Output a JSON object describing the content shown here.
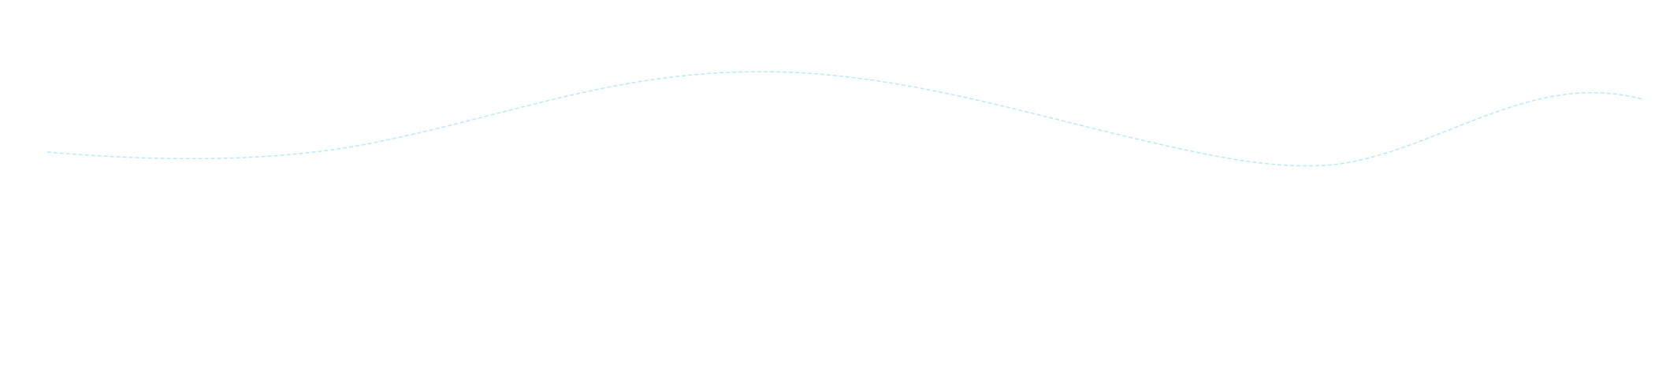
{
  "canvas": {
    "background": "#ffffff"
  },
  "curve": {
    "stroke_color": "#b8e8fb",
    "style": "dashed"
  }
}
